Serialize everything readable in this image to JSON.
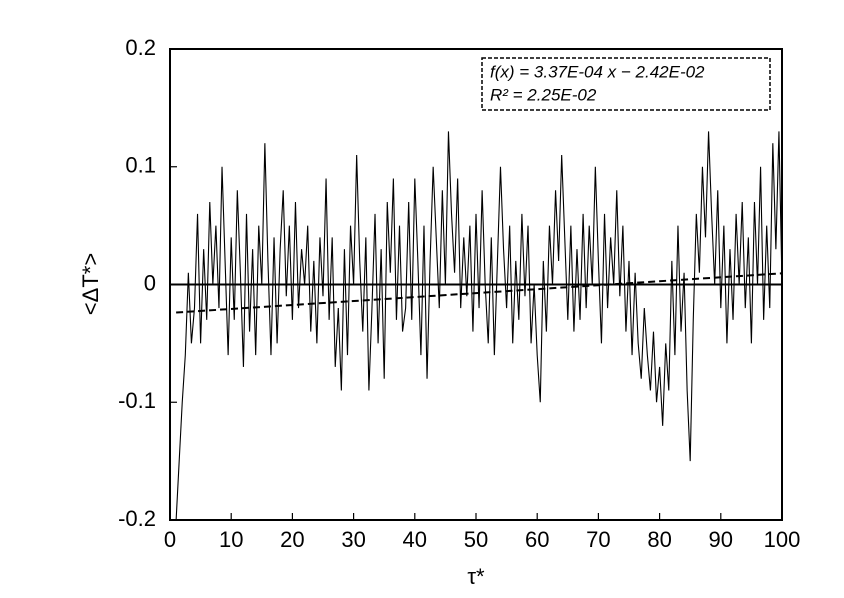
{
  "chart_data": {
    "type": "line",
    "xlabel": "τ*",
    "ylabel": "<ΔT*>",
    "annotation": [
      "f(x) = 3.37E-04 x − 2.42E-02",
      "R² = 2.25E-02"
    ],
    "xlim": [
      0,
      100
    ],
    "xticks": [
      0,
      10,
      20,
      30,
      40,
      50,
      60,
      70,
      80,
      90,
      100
    ],
    "ylim": [
      -0.2,
      0.2
    ],
    "yticks": [
      -0.2,
      -0.1,
      0,
      0.1,
      0.2
    ],
    "hlines": [
      0
    ],
    "series": [
      {
        "color": "#000000",
        "style": "solid",
        "x": [
          1,
          1.5,
          2,
          2.5,
          3,
          3.5,
          4,
          4.5,
          5,
          5.5,
          6,
          6.5,
          7,
          7.5,
          8,
          8.5,
          9,
          9.5,
          10,
          10.5,
          11,
          11.5,
          12,
          12.5,
          13,
          13.5,
          14,
          14.5,
          15,
          15.5,
          16,
          16.5,
          17,
          17.5,
          18,
          18.5,
          19,
          19.5,
          20,
          20.5,
          21,
          21.5,
          22,
          22.5,
          23,
          23.5,
          24,
          24.5,
          25,
          25.5,
          26,
          26.5,
          27,
          27.5,
          28,
          28.5,
          29,
          29.5,
          30,
          30.5,
          31,
          31.5,
          32,
          32.5,
          33,
          33.5,
          34,
          34.5,
          35,
          35.5,
          36,
          36.5,
          37,
          37.5,
          38,
          38.5,
          39,
          39.5,
          40,
          40.5,
          41,
          41.5,
          42,
          42.5,
          43,
          43.5,
          44,
          44.5,
          45,
          45.5,
          46,
          46.5,
          47,
          47.5,
          48,
          48.5,
          49,
          49.5,
          50,
          50.5,
          51,
          51.5,
          52,
          52.5,
          53,
          53.5,
          54,
          54.5,
          55,
          55.5,
          56,
          56.5,
          57,
          57.5,
          58,
          58.5,
          59,
          59.5,
          60,
          60.5,
          61,
          61.5,
          62,
          62.5,
          63,
          63.5,
          64,
          64.5,
          65,
          65.5,
          66,
          66.5,
          67,
          67.5,
          68,
          68.5,
          69,
          69.5,
          70,
          70.5,
          71,
          71.5,
          72,
          72.5,
          73,
          73.5,
          74,
          74.5,
          75,
          75.5,
          76,
          76.5,
          77,
          77.5,
          78,
          78.5,
          79,
          79.5,
          80,
          80.5,
          81,
          81.5,
          82,
          82.5,
          83,
          83.5,
          84,
          84.5,
          85,
          85.5,
          86,
          86.5,
          87,
          87.5,
          88,
          88.5,
          89,
          89.5,
          90,
          90.5,
          91,
          91.5,
          92,
          92.5,
          93,
          93.5,
          94,
          94.5,
          95,
          95.5,
          96,
          96.5,
          97,
          97.5,
          98,
          98.5,
          99,
          99.5,
          100
        ],
        "values": [
          -0.2,
          -0.15,
          -0.1,
          -0.06,
          0.01,
          -0.05,
          -0.02,
          0.06,
          -0.05,
          0.03,
          -0.03,
          0.07,
          0.0,
          0.05,
          -0.02,
          0.1,
          0.02,
          -0.06,
          0.04,
          -0.03,
          0.08,
          0.01,
          -0.07,
          0.06,
          -0.04,
          0.03,
          -0.06,
          0.05,
          0.0,
          0.12,
          0.02,
          -0.06,
          0.04,
          -0.05,
          0.03,
          0.08,
          -0.01,
          0.05,
          -0.03,
          0.07,
          -0.02,
          0.03,
          0.0,
          0.05,
          -0.04,
          0.02,
          -0.05,
          0.04,
          -0.01,
          0.09,
          -0.03,
          0.04,
          -0.07,
          -0.02,
          -0.09,
          0.03,
          -0.06,
          0.05,
          0.0,
          0.11,
          0.02,
          -0.04,
          0.04,
          -0.09,
          -0.02,
          0.06,
          -0.05,
          0.03,
          -0.08,
          0.07,
          0.01,
          0.09,
          -0.03,
          0.05,
          -0.04,
          -0.02,
          0.07,
          -0.03,
          0.09,
          0.02,
          -0.06,
          0.05,
          -0.08,
          0.02,
          0.1,
          0.04,
          -0.02,
          0.08,
          0.0,
          0.13,
          0.06,
          0.01,
          0.09,
          -0.02,
          0.04,
          -0.01,
          0.05,
          -0.04,
          0.06,
          -0.02,
          0.08,
          0.0,
          -0.05,
          0.04,
          -0.06,
          0.02,
          0.1,
          0.03,
          -0.02,
          0.05,
          -0.05,
          0.02,
          -0.03,
          0.06,
          -0.01,
          0.05,
          -0.05,
          0.0,
          -0.06,
          -0.1,
          0.02,
          -0.04,
          0.05,
          0.0,
          0.08,
          0.02,
          0.11,
          0.04,
          -0.03,
          0.05,
          -0.04,
          0.03,
          -0.03,
          0.06,
          -0.02,
          0.05,
          0.0,
          0.1,
          0.02,
          -0.05,
          0.06,
          -0.02,
          0.04,
          0.0,
          0.08,
          -0.01,
          0.05,
          -0.04,
          0.02,
          -0.06,
          0.01,
          -0.05,
          -0.08,
          -0.02,
          -0.06,
          -0.09,
          -0.04,
          -0.1,
          -0.07,
          -0.12,
          -0.05,
          -0.09,
          0.02,
          -0.06,
          0.05,
          -0.04,
          0.01,
          -0.09,
          -0.15,
          -0.03,
          0.06,
          0.01,
          0.1,
          0.04,
          0.13,
          0.06,
          0.0,
          0.08,
          -0.02,
          0.05,
          -0.05,
          0.03,
          -0.03,
          0.06,
          0.0,
          0.07,
          -0.02,
          0.04,
          -0.05,
          0.07,
          0.0,
          0.1,
          -0.03,
          0.05,
          -0.02,
          0.12,
          0.03,
          0.13,
          0.0
        ]
      },
      {
        "color": "#000000",
        "style": "dashed",
        "x": [
          1,
          100
        ],
        "values": [
          -0.0238,
          0.0095
        ]
      }
    ]
  }
}
